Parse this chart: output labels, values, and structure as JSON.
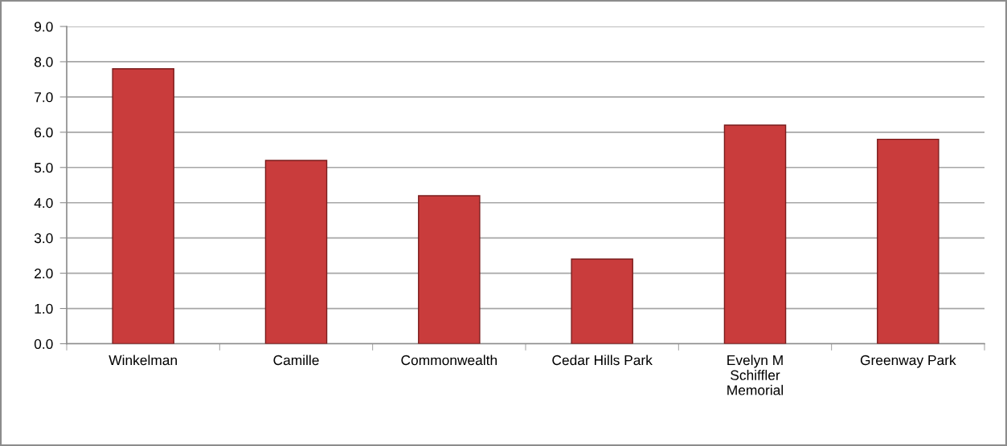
{
  "chart_data": {
    "type": "bar",
    "categories": [
      "Winkelman",
      "Camille",
      "Commonwealth",
      "Cedar Hills Park",
      "Evelyn M\nSchiffler\nMemorial",
      "Greenway Park"
    ],
    "values": [
      7.8,
      5.2,
      4.2,
      2.4,
      6.2,
      5.8
    ],
    "color": "#c93c3c",
    "ylim": [
      0,
      9
    ],
    "yticks": [
      {
        "value": 0,
        "label": "0.0"
      },
      {
        "value": 1,
        "label": "1.0"
      },
      {
        "value": 2,
        "label": "2.0"
      },
      {
        "value": 3,
        "label": "3.0"
      },
      {
        "value": 4,
        "label": "4.0"
      },
      {
        "value": 5,
        "label": "5.0"
      },
      {
        "value": 6,
        "label": "6.0"
      },
      {
        "value": 7,
        "label": "7.0"
      },
      {
        "value": 8,
        "label": "8.0"
      },
      {
        "value": 9,
        "label": "9.0"
      }
    ],
    "grid": "y",
    "legend": false
  }
}
